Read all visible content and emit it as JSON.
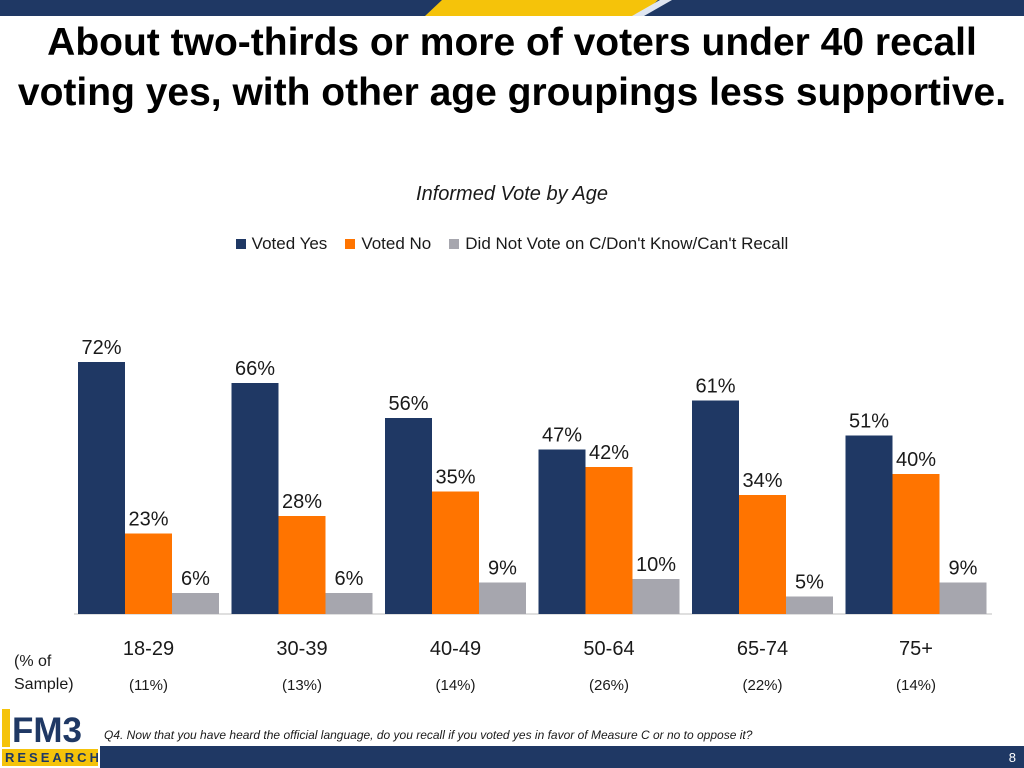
{
  "header": {
    "title": "About two-thirds or more of voters under 40 recall voting yes, with other age groupings less supportive."
  },
  "chart_data": {
    "type": "bar",
    "title": "Informed Vote by Age",
    "categories": [
      "18-29",
      "30-39",
      "40-49",
      "50-64",
      "65-74",
      "75+"
    ],
    "sample_shares": [
      "(11%)",
      "(13%)",
      "(14%)",
      "(26%)",
      "(22%)",
      "(14%)"
    ],
    "series": [
      {
        "name": "Voted Yes",
        "color": "#1f3864",
        "values": [
          72,
          66,
          56,
          47,
          61,
          51
        ]
      },
      {
        "name": "Voted No",
        "color": "#ff7400",
        "values": [
          23,
          28,
          35,
          42,
          34,
          40
        ]
      },
      {
        "name": "Did Not Vote on C/Don't Know/Can't Recall",
        "color": "#a6a6ae",
        "values": [
          6,
          6,
          9,
          10,
          5,
          9
        ]
      }
    ],
    "value_suffix": "%",
    "ylim": [
      0,
      100
    ],
    "grid": false,
    "legend_position": "top-center"
  },
  "sample": {
    "label_line1": "(% of",
    "label_line2": "Sample)"
  },
  "logo": {
    "top_text": "FM3",
    "bottom_text": "RESEARCH"
  },
  "footer": {
    "question": "Q4. Now that you have heard the official language, do you recall if you voted yes in favor of Measure C or no to oppose it?",
    "page_number": "8"
  },
  "colors": {
    "navy": "#1f3864",
    "gold": "#f5c30a"
  }
}
